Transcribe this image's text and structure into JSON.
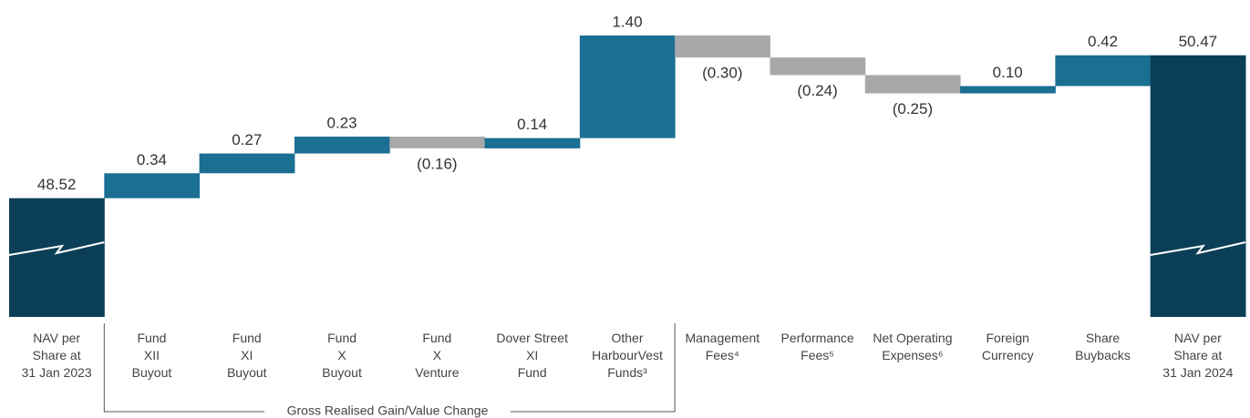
{
  "chart_data": {
    "type": "waterfall",
    "categories": [
      [
        "NAV per",
        "Share at",
        "31 Jan 2023"
      ],
      [
        "Fund",
        "XII",
        "Buyout"
      ],
      [
        "Fund",
        "XI",
        "Buyout"
      ],
      [
        "Fund",
        "X",
        "Buyout"
      ],
      [
        "Fund",
        "X",
        "Venture"
      ],
      [
        "Dover Street",
        "XI",
        "Fund"
      ],
      [
        "Other",
        "HarbourVest",
        "Funds³"
      ],
      [
        "Management",
        "Fees⁴"
      ],
      [
        "Performance",
        "Fees⁵"
      ],
      [
        "Net Operating",
        "Expenses⁶"
      ],
      [
        "Foreign",
        "Currency"
      ],
      [
        "Share",
        "Buybacks"
      ],
      [
        "NAV per",
        "Share at",
        "31 Jan 2024"
      ]
    ],
    "values": [
      48.52,
      0.34,
      0.27,
      0.23,
      -0.16,
      0.14,
      1.4,
      -0.3,
      -0.24,
      -0.25,
      0.1,
      0.42,
      50.47
    ],
    "value_labels": [
      "48.52",
      "0.34",
      "0.27",
      "0.23",
      "(0.16)",
      "0.14",
      "1.40",
      "(0.30)",
      "(0.24)",
      "(0.25)",
      "0.10",
      "0.42",
      "50.47"
    ],
    "is_total": [
      true,
      false,
      false,
      false,
      false,
      false,
      false,
      false,
      false,
      false,
      false,
      false,
      true
    ],
    "color_total": "#0b3f57",
    "color_positive": "#1b6f93",
    "color_negative": "#a7a8aa",
    "ylim": [
      46.9,
      51.1
    ],
    "annotation": "Gross Realised Gain/Value Change"
  }
}
